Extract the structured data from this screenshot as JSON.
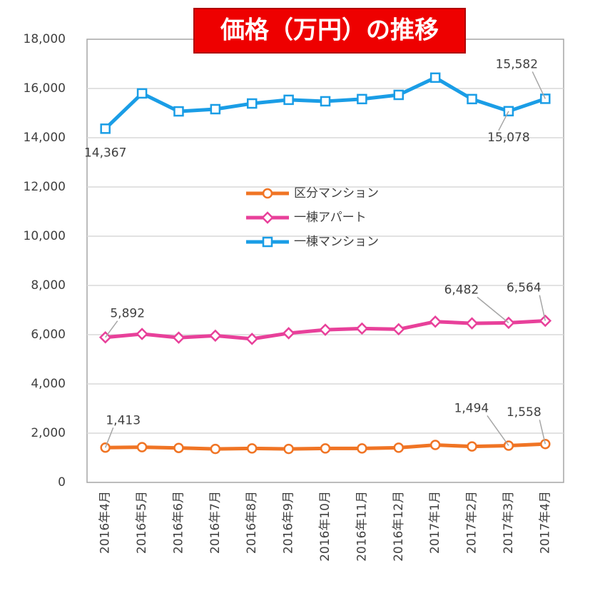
{
  "chart_data": {
    "type": "line",
    "title": "価格（万円）の推移",
    "categories": [
      "2016年4月",
      "2016年5月",
      "2016年6月",
      "2016年7月",
      "2016年8月",
      "2016年9月",
      "2016年10月",
      "2016年11月",
      "2016年12月",
      "2017年1月",
      "2017年2月",
      "2017年3月",
      "2017年4月"
    ],
    "series": [
      {
        "name": "区分マンション",
        "color": "#f07424",
        "marker": "circle",
        "values": [
          1413,
          1430,
          1400,
          1360,
          1380,
          1360,
          1380,
          1380,
          1410,
          1520,
          1460,
          1494,
          1558
        ],
        "value_labels": [
          "1,413",
          null,
          null,
          null,
          null,
          null,
          null,
          null,
          null,
          null,
          null,
          "1,494",
          "1,558"
        ]
      },
      {
        "name": "一棟アパート",
        "color": "#e8409a",
        "marker": "diamond",
        "values": [
          5892,
          6030,
          5880,
          5960,
          5830,
          6060,
          6200,
          6250,
          6220,
          6530,
          6460,
          6482,
          6564
        ],
        "value_labels": [
          "5,892",
          null,
          null,
          null,
          null,
          null,
          null,
          null,
          null,
          null,
          null,
          "6,482",
          "6,564"
        ]
      },
      {
        "name": "一棟マンション",
        "color": "#1a9de6",
        "marker": "square",
        "values": [
          14367,
          15800,
          15070,
          15160,
          15390,
          15540,
          15480,
          15570,
          15740,
          16440,
          15570,
          15078,
          15582
        ],
        "value_labels": [
          "14,367",
          null,
          null,
          null,
          null,
          null,
          null,
          null,
          null,
          null,
          null,
          "15,078",
          "15,582"
        ]
      }
    ],
    "ylim": [
      0,
      18000
    ],
    "yticks": [
      0,
      {
        "value": 2000,
        "label": "2,000"
      },
      {
        "value": 4000,
        "label": "4,000"
      },
      {
        "value": 6000,
        "label": "6,000"
      },
      {
        "value": 8000,
        "label": "8,000"
      },
      {
        "value": 10000,
        "label": "10,000"
      },
      {
        "value": 12000,
        "label": "12,000"
      },
      {
        "value": 14000,
        "label": "14,000"
      },
      {
        "value": 16000,
        "label": "16,000"
      },
      {
        "value": 18000,
        "label": "18,000"
      }
    ],
    "grid": true
  }
}
